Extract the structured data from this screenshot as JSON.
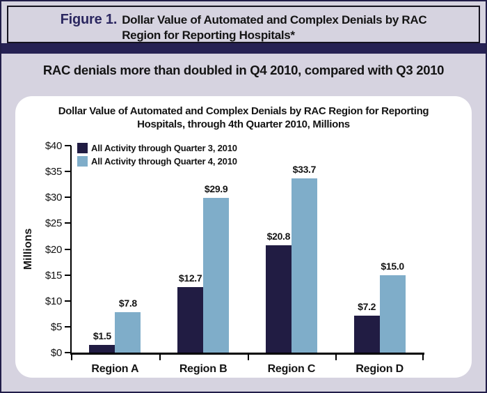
{
  "header": {
    "figure_label": "Figure 1.",
    "title_lines": [
      "Dollar Value of Automated and Complex Denials by RAC",
      "Region for Reporting Hospitals*"
    ]
  },
  "headline": "RAC denials more than doubled in Q4 2010, compared with Q3 2010",
  "chart_data": {
    "type": "bar",
    "title_lines": [
      "Dollar Value of Automated and Complex Denials by RAC Region for Reporting",
      "Hospitals, through 4th Quarter 2010, Millions"
    ],
    "categories": [
      "Region A",
      "Region B",
      "Region C",
      "Region D"
    ],
    "series": [
      {
        "name": "All Activity through Quarter 3, 2010",
        "color": "#211c43",
        "values": [
          1.5,
          12.7,
          20.8,
          7.2
        ],
        "value_labels": [
          "$1.5",
          "$12.7",
          "$20.8",
          "$7.2"
        ]
      },
      {
        "name": "All Activity through Quarter 4, 2010",
        "color": "#7fadc9",
        "values": [
          7.8,
          29.9,
          33.7,
          15.0
        ],
        "value_labels": [
          "$7.8",
          "$29.9",
          "$33.7",
          "$15.0"
        ]
      }
    ],
    "xlabel": "",
    "ylabel": "Millions",
    "ylim": [
      0,
      40
    ],
    "ytick_step": 5,
    "ytick_labels": [
      "$0",
      "$5",
      "$10",
      "$15",
      "$20",
      "$25",
      "$30",
      "$35",
      "$40"
    ],
    "legend_position": "top-left",
    "grid": false
  },
  "colors": {
    "background": "#d6d3e0",
    "divider": "#262153",
    "figure_label": "#2b2760",
    "series_q3": "#211c43",
    "series_q4": "#7fadc9",
    "card": "#ffffff",
    "axis": "#000000"
  }
}
